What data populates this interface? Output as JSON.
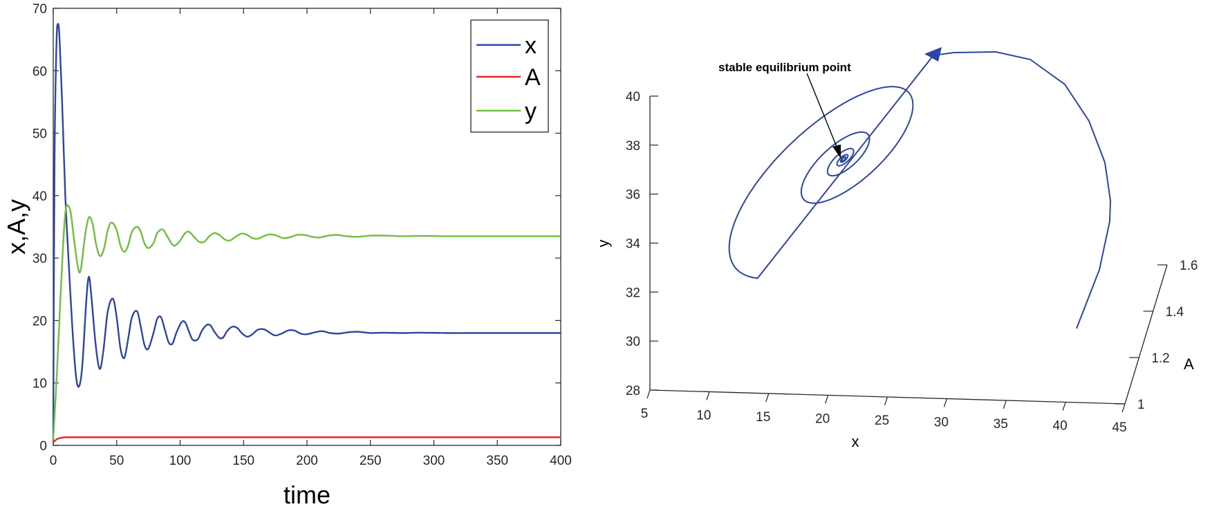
{
  "chart_data": [
    {
      "type": "line",
      "title": "",
      "xlabel": "time",
      "ylabel": "x,A,y",
      "xlim": [
        0,
        400
      ],
      "ylim": [
        0,
        70
      ],
      "xticks": [
        0,
        50,
        100,
        150,
        200,
        250,
        300,
        350,
        400
      ],
      "yticks": [
        0,
        10,
        20,
        30,
        40,
        50,
        60,
        70
      ],
      "legend_position": "top-right",
      "grid": false,
      "series": [
        {
          "name": "x",
          "color": "#2b45a0",
          "points": [
            [
              0,
              1
            ],
            [
              1,
              45
            ],
            [
              2.5,
              64
            ],
            [
              3.7,
              67.5
            ],
            [
              5,
              65
            ],
            [
              7,
              55
            ],
            [
              9.5,
              40
            ],
            [
              12,
              30
            ],
            [
              15,
              19
            ],
            [
              18,
              11
            ],
            [
              20.5,
              9.5
            ],
            [
              23,
              13
            ],
            [
              26,
              23
            ],
            [
              28,
              27
            ],
            [
              30,
              24
            ],
            [
              33,
              17
            ],
            [
              35.5,
              13
            ],
            [
              37.5,
              12.5
            ],
            [
              40,
              16
            ],
            [
              43,
              21.5
            ],
            [
              47,
              23.5
            ],
            [
              50,
              20.5
            ],
            [
              53,
              15.5
            ],
            [
              56,
              14
            ],
            [
              59,
              17
            ],
            [
              62,
              20.5
            ],
            [
              66,
              21.5
            ],
            [
              69,
              19
            ],
            [
              72,
              16
            ],
            [
              75,
              15.5
            ],
            [
              79,
              18
            ],
            [
              82,
              20.3
            ],
            [
              85,
              20.5
            ],
            [
              88,
              18.5
            ],
            [
              91,
              16.5
            ],
            [
              94,
              16.3
            ],
            [
              97,
              18
            ],
            [
              101,
              19.7
            ],
            [
              104,
              19.7
            ],
            [
              107,
              18.2
            ],
            [
              110,
              16.9
            ],
            [
              114,
              17
            ],
            [
              117,
              18.3
            ],
            [
              121,
              19.3
            ],
            [
              124,
              19.2
            ],
            [
              127,
              18.2
            ],
            [
              131,
              17.2
            ],
            [
              134,
              17.3
            ],
            [
              137,
              18.3
            ],
            [
              141,
              19
            ],
            [
              145,
              18.8
            ],
            [
              149,
              17.9
            ],
            [
              153,
              17.4
            ],
            [
              157,
              17.8
            ],
            [
              161,
              18.5
            ],
            [
              166,
              18.6
            ],
            [
              171,
              18
            ],
            [
              175,
              17.6
            ],
            [
              180,
              17.9
            ],
            [
              185,
              18.4
            ],
            [
              190,
              18.4
            ],
            [
              195,
              17.9
            ],
            [
              200,
              17.8
            ],
            [
              206,
              18.1
            ],
            [
              212,
              18.3
            ],
            [
              218,
              18
            ],
            [
              225,
              17.9
            ],
            [
              232,
              18.1
            ],
            [
              240,
              18.2
            ],
            [
              250,
              18
            ],
            [
              260,
              18.05
            ],
            [
              275,
              18
            ],
            [
              290,
              18.05
            ],
            [
              310,
              18
            ],
            [
              330,
              18
            ],
            [
              360,
              18
            ],
            [
              400,
              18
            ]
          ]
        },
        {
          "name": "A",
          "color": "#e8262b",
          "points": [
            [
              0,
              0.5
            ],
            [
              3,
              1
            ],
            [
              6,
              1.2
            ],
            [
              10,
              1.3
            ],
            [
              20,
              1.3
            ],
            [
              100,
              1.3
            ],
            [
              200,
              1.3
            ],
            [
              300,
              1.3
            ],
            [
              400,
              1.3
            ]
          ]
        },
        {
          "name": "y",
          "color": "#6dbf3c",
          "points": [
            [
              0,
              1
            ],
            [
              3,
              12
            ],
            [
              6,
              25
            ],
            [
              8,
              33
            ],
            [
              10,
              38
            ],
            [
              12,
              38.3
            ],
            [
              14,
              37
            ],
            [
              17,
              32
            ],
            [
              20,
              28
            ],
            [
              22,
              28.5
            ],
            [
              25,
              33.5
            ],
            [
              28,
              36.5
            ],
            [
              31,
              35.5
            ],
            [
              34,
              32
            ],
            [
              37,
              30.3
            ],
            [
              40,
              31.5
            ],
            [
              43,
              34.5
            ],
            [
              46,
              35.7
            ],
            [
              50,
              34.5
            ],
            [
              53,
              32
            ],
            [
              56,
              31
            ],
            [
              59,
              32
            ],
            [
              62,
              34.2
            ],
            [
              66,
              35
            ],
            [
              69,
              34.2
            ],
            [
              72,
              32.3
            ],
            [
              75,
              31.6
            ],
            [
              79,
              32.4
            ],
            [
              82,
              34
            ],
            [
              86,
              34.6
            ],
            [
              89,
              33.8
            ],
            [
              93,
              32.4
            ],
            [
              96,
              32
            ],
            [
              100,
              32.8
            ],
            [
              104,
              34
            ],
            [
              107,
              34.2
            ],
            [
              111,
              33.4
            ],
            [
              115,
              32.6
            ],
            [
              119,
              32.6
            ],
            [
              123,
              33.5
            ],
            [
              127,
              34
            ],
            [
              131,
              33.7
            ],
            [
              135,
              33
            ],
            [
              139,
              32.8
            ],
            [
              143,
              33.3
            ],
            [
              148,
              33.9
            ],
            [
              152,
              33.8
            ],
            [
              157,
              33.2
            ],
            [
              161,
              33.1
            ],
            [
              166,
              33.5
            ],
            [
              171,
              33.8
            ],
            [
              176,
              33.6
            ],
            [
              181,
              33.2
            ],
            [
              186,
              33.3
            ],
            [
              192,
              33.7
            ],
            [
              198,
              33.7
            ],
            [
              204,
              33.4
            ],
            [
              210,
              33.3
            ],
            [
              217,
              33.6
            ],
            [
              224,
              33.7
            ],
            [
              231,
              33.5
            ],
            [
              240,
              33.4
            ],
            [
              250,
              33.6
            ],
            [
              262,
              33.6
            ],
            [
              275,
              33.5
            ],
            [
              290,
              33.55
            ],
            [
              310,
              33.5
            ],
            [
              330,
              33.5
            ],
            [
              360,
              33.5
            ],
            [
              400,
              33.5
            ]
          ]
        }
      ]
    },
    {
      "type": "line3d",
      "title": "",
      "xlabel": "x",
      "ylabel": "y",
      "zlabel": "A",
      "xlim": [
        5,
        45
      ],
      "ylim": [
        28,
        40
      ],
      "zlim": [
        1,
        1.6
      ],
      "xticks": [
        5,
        10,
        15,
        20,
        25,
        30,
        35,
        40,
        45
      ],
      "yticks": [
        28,
        30,
        32,
        34,
        36,
        38,
        40
      ],
      "zticks": [
        1,
        1.2,
        1.4,
        1.6
      ],
      "annotation": "stable equilibrium point",
      "equilibrium": {
        "x": 18,
        "y": 33.5,
        "A": 1.3
      },
      "trajectory_color": "#2b45a0"
    }
  ]
}
